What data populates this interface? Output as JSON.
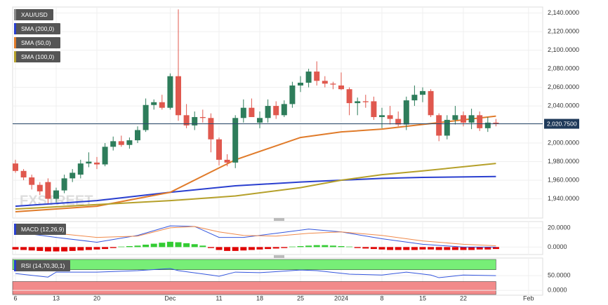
{
  "chart_data": [
    {
      "type": "candlestick",
      "title": "XAU/USD",
      "open": [
        1978,
        1970,
        1963,
        1955,
        1958,
        1940,
        1949,
        1962,
        1966,
        1978,
        1979,
        1977,
        1996,
        2002,
        1998,
        2003,
        2014,
        2041,
        2044,
        2038,
        2072,
        2030,
        2019,
        2028,
        2027,
        2004,
        1982,
        1979,
        2027,
        2038,
        2022,
        2027,
        2040,
        2030,
        2042,
        2062,
        2065,
        2077,
        2067,
        2064,
        2062,
        2058,
        2043,
        2045,
        2045,
        2028,
        2030,
        2026,
        2020,
        2046,
        2052,
        2056,
        2030,
        2008,
        2025,
        2030,
        2022,
        2030,
        2016,
        2022
      ],
      "high": [
        1982,
        1972,
        1966,
        1958,
        1962,
        1952,
        1966,
        1972,
        1982,
        1990,
        1985,
        2000,
        2007,
        2008,
        2006,
        2018,
        2048,
        2047,
        2052,
        2075,
        2144,
        2042,
        2034,
        2036,
        2032,
        2006,
        1988,
        2030,
        2047,
        2048,
        2034,
        2047,
        2045,
        2046,
        2066,
        2072,
        2080,
        2088,
        2072,
        2066,
        2076,
        2060,
        2049,
        2052,
        2050,
        2038,
        2040,
        2034,
        2050,
        2062,
        2060,
        2058,
        2032,
        2030,
        2040,
        2034,
        2037,
        2034,
        2028,
        2026
      ],
      "low": [
        1968,
        1960,
        1950,
        1944,
        1935,
        1936,
        1946,
        1958,
        1962,
        1974,
        1972,
        1975,
        1992,
        1996,
        1994,
        2000,
        2012,
        2036,
        2036,
        2036,
        2024,
        2016,
        2014,
        2022,
        1990,
        1976,
        1975,
        1973,
        2022,
        2030,
        2016,
        2022,
        2026,
        2028,
        2038,
        2055,
        2060,
        2062,
        2060,
        2058,
        2057,
        2030,
        2030,
        2038,
        2025,
        2016,
        2020,
        2018,
        2014,
        2040,
        2044,
        2028,
        2002,
        2004,
        2020,
        2018,
        2015,
        2013,
        2012,
        2018
      ],
      "close": [
        1970,
        1963,
        1955,
        1948,
        1940,
        1949,
        1962,
        1968,
        1978,
        1980,
        1977,
        1996,
        2002,
        1998,
        2003,
        2014,
        2041,
        2044,
        2038,
        2072,
        2030,
        2019,
        2028,
        2027,
        2004,
        1982,
        1979,
        2027,
        2038,
        2028,
        2027,
        2040,
        2030,
        2042,
        2062,
        2065,
        2077,
        2067,
        2064,
        2063,
        2058,
        2043,
        2045,
        2044,
        2028,
        2030,
        2026,
        2020,
        2046,
        2052,
        2056,
        2030,
        2008,
        2025,
        2030,
        2022,
        2030,
        2016,
        2022,
        2021
      ],
      "up_color": "#2e7d5b",
      "down_color": "#e0584e",
      "ylim": [
        1920,
        2145
      ],
      "yticks": [
        {
          "value": 1940,
          "label": "1,940.0000"
        },
        {
          "value": 1960,
          "label": "1,960.0000"
        },
        {
          "value": 1980,
          "label": "1,980.0000"
        },
        {
          "value": 2000,
          "label": "2,000.0000"
        },
        {
          "value": 2020,
          "label": "2,020.0000"
        },
        {
          "value": 2040,
          "label": "2,040.0000"
        },
        {
          "value": 2060,
          "label": "2,060.0000"
        },
        {
          "value": 2080,
          "label": "2,080.0000"
        },
        {
          "value": 2100,
          "label": "2,100.0000"
        },
        {
          "value": 2120,
          "label": "2,120.0000"
        },
        {
          "value": 2140,
          "label": "2,140.0000"
        }
      ],
      "grid": true,
      "last_price": {
        "value": 2020.75,
        "label": "2,020.7500"
      },
      "watermark": "FXSTREET",
      "overlays": [
        {
          "name": "SMA (200,0)",
          "color": "#2a3fcf",
          "x": [
            0,
            10,
            19,
            27,
            35,
            40,
            45,
            50,
            59
          ],
          "values": [
            1932,
            1938,
            1947,
            1954,
            1958,
            1960,
            1962,
            1963,
            1964
          ]
        },
        {
          "name": "SMA (50,0)",
          "color": "#e07b2a",
          "x": [
            0,
            10,
            19,
            27,
            35,
            40,
            45,
            50,
            59
          ],
          "values": [
            1926,
            1932,
            1947,
            1982,
            2006,
            2012,
            2015,
            2020,
            2029
          ]
        },
        {
          "name": "SMA (100,0)",
          "color": "#b5a02a",
          "x": [
            0,
            19,
            27,
            35,
            40,
            45,
            50,
            59
          ],
          "values": [
            1929,
            1938,
            1943,
            1952,
            1960,
            1966,
            1970,
            1978
          ]
        }
      ]
    },
    {
      "type": "macd",
      "title": "MACD (12,26,9)",
      "ylim": [
        -7,
        25
      ],
      "yticks": [
        {
          "value": 0,
          "label": "0.0000"
        },
        {
          "value": 20,
          "label": "20.0000"
        }
      ],
      "histogram": {
        "values": [
          -2.5,
          -3,
          -3.5,
          -4,
          -4.5,
          -4.5,
          -4.5,
          -4,
          -3.5,
          -3,
          -2.5,
          -2,
          -1,
          0.5,
          1,
          1.5,
          2.5,
          3.5,
          4.5,
          5.5,
          5,
          4,
          3,
          1.5,
          -1,
          -3,
          -4,
          -4,
          -3.5,
          -3,
          -2.5,
          -2,
          -1.5,
          -1,
          0.5,
          1,
          1.5,
          2,
          2,
          1.5,
          1,
          0.5,
          -1,
          -1.5,
          -2,
          -2.5,
          -3,
          -3,
          -3,
          -3,
          -2.5,
          -2.5,
          -3,
          -3,
          -3,
          -3,
          -3,
          -2.5,
          -2.5,
          -2
        ],
        "up_color": "#33cc33",
        "down_color": "#e00000"
      },
      "series": [
        {
          "color": "#3355dd",
          "x": [
            0,
            5,
            10,
            15,
            19,
            22,
            25,
            28,
            32,
            36,
            40,
            45,
            50,
            55,
            59
          ],
          "values": [
            15.7,
            10,
            5,
            12.1,
            22,
            21.4,
            10,
            10,
            14.3,
            18.6,
            15.7,
            8.6,
            2.9,
            0,
            0
          ]
        },
        {
          "color": "#f08a4b",
          "x": [
            0,
            5,
            10,
            15,
            19,
            22,
            25,
            28,
            32,
            36,
            40,
            45,
            50,
            55,
            59
          ],
          "values": [
            17.1,
            14.3,
            10,
            11.4,
            20,
            21.4,
            15.7,
            12.1,
            11.4,
            14.3,
            15.7,
            12.1,
            6.4,
            2.9,
            1.4
          ]
        }
      ]
    },
    {
      "type": "rsi",
      "title": "RSI (14,70,30,1)",
      "ylim": [
        -14,
        105
      ],
      "yticks": [
        {
          "value": 0,
          "label": "0.0000"
        },
        {
          "value": 50,
          "label": "50.0000"
        }
      ],
      "overbought": 70,
      "oversold": 30,
      "overbought_color": "#77ee77",
      "oversold_color": "#f28a8a",
      "series": [
        {
          "color": "#3355dd",
          "x": [
            0,
            4,
            5,
            10,
            15,
            19,
            20,
            24,
            25,
            27,
            30,
            35,
            37,
            41,
            45,
            48,
            51,
            52,
            55,
            59
          ],
          "values": [
            57,
            45,
            62,
            62,
            67,
            74,
            67,
            52,
            48,
            62,
            60,
            69,
            67,
            55,
            52,
            62,
            52,
            43,
            52,
            50
          ]
        }
      ],
      "xticks": [
        {
          "value": 0,
          "label": "6"
        },
        {
          "value": 5,
          "label": "13"
        },
        {
          "value": 10,
          "label": "20"
        },
        {
          "value": 19,
          "label": "Dec"
        },
        {
          "value": 25,
          "label": "11"
        },
        {
          "value": 30,
          "label": "18"
        },
        {
          "value": 35,
          "label": "25"
        },
        {
          "value": 40,
          "label": "2024"
        },
        {
          "value": 45,
          "label": "8"
        },
        {
          "value": 50,
          "label": "15"
        },
        {
          "value": 55,
          "label": "22"
        },
        {
          "value": 63,
          "label": "Feb"
        }
      ]
    }
  ]
}
